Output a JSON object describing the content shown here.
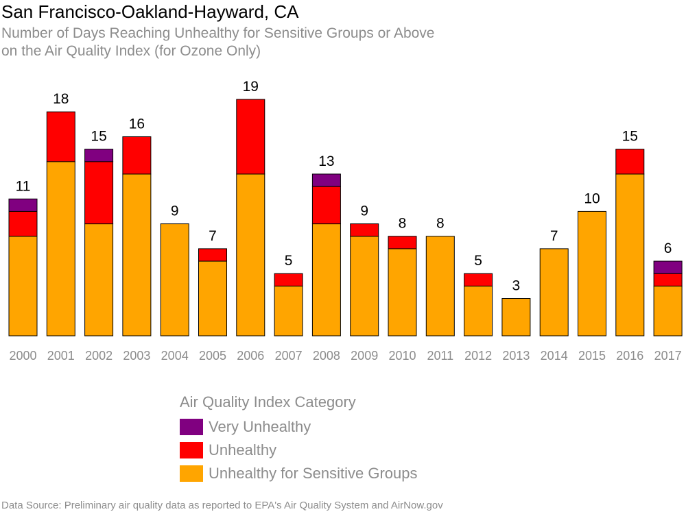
{
  "title": "San Francisco-Oakland-Hayward, CA",
  "subtitle_line1": "Number of Days Reaching Unhealthy for Sensitive Groups or Above",
  "subtitle_line2": "on the Air Quality Index (for Ozone Only)",
  "legend_title": "Air Quality Index Category",
  "source": "Data Source: Preliminary air quality data as reported to EPA's Air Quality System and AirNow.gov",
  "colors": {
    "very_unhealthy": "#800080",
    "unhealthy": "#ff0000",
    "sensitive": "#ffa500",
    "axis_text": "#8c8c8c"
  },
  "chart_data": {
    "type": "bar",
    "stacked": true,
    "categories": [
      "2000",
      "2001",
      "2002",
      "2003",
      "2004",
      "2005",
      "2006",
      "2007",
      "2008",
      "2009",
      "2010",
      "2011",
      "2012",
      "2013",
      "2014",
      "2015",
      "2016",
      "2017"
    ],
    "totals": [
      11,
      18,
      15,
      16,
      9,
      7,
      19,
      5,
      13,
      9,
      8,
      8,
      5,
      3,
      7,
      10,
      15,
      6
    ],
    "series": [
      {
        "name": "Unhealthy for Sensitive Groups",
        "color": "#ffa500",
        "values": [
          8,
          14,
          9,
          13,
          9,
          6,
          13,
          4,
          9,
          8,
          7,
          8,
          4,
          3,
          7,
          10,
          13,
          4
        ]
      },
      {
        "name": "Unhealthy",
        "color": "#ff0000",
        "values": [
          2,
          4,
          5,
          3,
          0,
          1,
          6,
          1,
          3,
          1,
          1,
          0,
          1,
          0,
          0,
          0,
          2,
          1
        ]
      },
      {
        "name": "Very Unhealthy",
        "color": "#800080",
        "values": [
          1,
          0,
          1,
          0,
          0,
          0,
          0,
          0,
          1,
          0,
          0,
          0,
          0,
          0,
          0,
          0,
          0,
          1
        ]
      }
    ],
    "ylim": [
      0,
      19
    ],
    "grid": false,
    "legend_position": "bottom"
  }
}
